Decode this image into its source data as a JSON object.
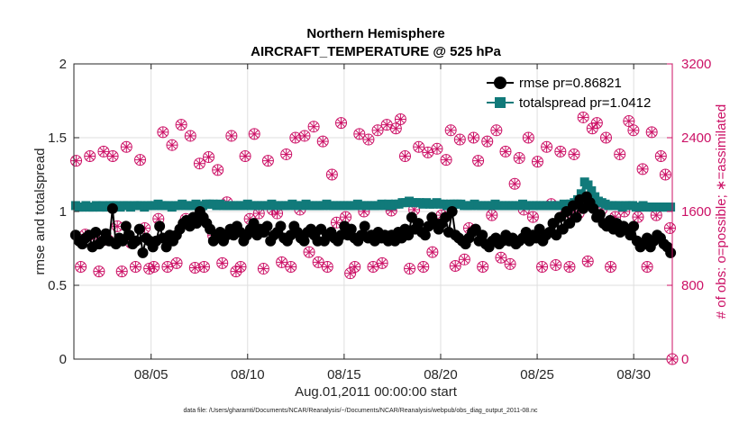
{
  "chart_data": {
    "type": "line",
    "title": "Northern Hemisphere",
    "subtitle": "AIRCRAFT_TEMPERATURE @ 525 hPa",
    "xlabel": "Aug.01,2011 00:00:00 start",
    "ylabel": "rmse and totalspread",
    "y2label": "# of obs: o=possible; ∗=assimilated",
    "footer": "data file: /Users/gharamti/Documents/NCAR/Reanalysis/~/Documents/NCAR/Reanalysis/webpub/obs_diag_output_2011-08.nc",
    "xlim": [
      1,
      32
    ],
    "ylim": [
      0,
      2
    ],
    "y2lim": [
      0,
      3200
    ],
    "xticks": [
      5,
      10,
      15,
      20,
      25,
      30
    ],
    "xticklabels": [
      "08/05",
      "08/10",
      "08/15",
      "08/20",
      "08/25",
      "08/30"
    ],
    "yticks": [
      0,
      0.5,
      1,
      1.5,
      2
    ],
    "yticklabels": [
      "0",
      "0.5",
      "1",
      "1.5",
      "2"
    ],
    "y2ticks": [
      0,
      800,
      1600,
      2400,
      3200
    ],
    "y2ticklabels": [
      "0",
      "800",
      "1600",
      "2400",
      "3200"
    ],
    "grid": true,
    "legend_location": "top-right",
    "colors": {
      "rmse": "#000000",
      "spread": "#117a7a",
      "obs": "#cc1166",
      "grid": "#dfdfdf"
    },
    "series": [
      {
        "name": "rmse pr=0.86821",
        "axis": "left",
        "marker": "circle",
        "values": [
          0.84,
          0.8,
          0.78,
          0.82,
          0.84,
          0.76,
          0.86,
          0.78,
          0.8,
          0.85,
          0.8,
          1.02,
          0.78,
          0.82,
          0.8,
          0.9,
          0.84,
          0.78,
          0.8,
          0.88,
          0.72,
          0.82,
          0.8,
          0.76,
          0.8,
          0.9,
          0.82,
          0.76,
          0.84,
          0.8,
          0.84,
          0.88,
          0.92,
          0.94,
          0.9,
          0.96,
          0.92,
          1.0,
          0.96,
          0.92,
          0.88,
          0.8,
          0.84,
          0.86,
          0.8,
          0.84,
          0.88,
          0.84,
          0.9,
          0.86,
          0.8,
          0.84,
          0.88,
          0.92,
          0.84,
          0.88,
          0.86,
          0.9,
          0.8,
          0.84,
          0.86,
          0.9,
          0.82,
          0.8,
          0.84,
          0.9,
          0.86,
          0.82,
          0.8,
          0.86,
          0.88,
          0.84,
          0.8,
          0.88,
          0.8,
          0.84,
          0.86,
          0.82,
          0.8,
          0.84,
          0.9,
          0.84,
          0.88,
          0.82,
          0.8,
          0.84,
          0.9,
          0.82,
          0.84,
          0.8,
          0.86,
          0.82,
          0.84,
          0.8,
          0.84,
          0.8,
          0.86,
          0.82,
          0.88,
          0.84,
          0.96,
          0.88,
          0.92,
          0.86,
          0.84,
          0.9,
          0.96,
          0.92,
          0.88,
          0.92,
          0.96,
          0.86,
          1.0,
          0.84,
          0.82,
          0.8,
          0.78,
          0.82,
          0.86,
          0.88,
          0.8,
          0.84,
          0.78,
          0.76,
          0.8,
          0.82,
          0.78,
          0.8,
          0.84,
          0.8,
          0.82,
          0.78,
          0.8,
          0.82,
          0.86,
          0.8,
          0.84,
          0.82,
          0.88,
          0.8,
          0.84,
          0.86,
          0.92,
          0.84,
          0.96,
          0.88,
          1.0,
          0.92,
          1.04,
          0.96,
          1.08,
          1.02,
          1.1,
          1.06,
          1.02,
          0.96,
          0.98,
          0.92,
          0.9,
          0.94,
          0.88,
          0.92,
          0.86,
          0.9,
          0.88,
          0.84,
          0.9,
          0.8,
          0.76,
          0.78,
          0.82,
          0.76,
          0.8,
          0.84,
          0.82,
          0.78,
          0.76,
          0.72
        ]
      },
      {
        "name": "totalspread pr=1.0412",
        "axis": "left",
        "marker": "square",
        "values": [
          1.04,
          1.03,
          1.03,
          1.04,
          1.03,
          1.03,
          1.04,
          1.03,
          1.04,
          1.03,
          1.04,
          1.04,
          1.04,
          1.03,
          1.04,
          1.04,
          1.03,
          1.04,
          1.04,
          1.04,
          1.03,
          1.04,
          1.04,
          1.04,
          1.05,
          1.04,
          1.04,
          1.04,
          1.03,
          1.04,
          1.04,
          1.05,
          1.04,
          1.04,
          1.04,
          1.05,
          1.04,
          1.04,
          1.05,
          1.05,
          1.05,
          1.04,
          1.05,
          1.04,
          1.04,
          1.04,
          1.04,
          1.04,
          1.04,
          1.04,
          1.05,
          1.04,
          1.04,
          1.04,
          1.04,
          1.04,
          1.04,
          1.05,
          1.04,
          1.04,
          1.04,
          1.04,
          1.04,
          1.05,
          1.04,
          1.04,
          1.04,
          1.05,
          1.04,
          1.04,
          1.04,
          1.04,
          1.04,
          1.05,
          1.04,
          1.04,
          1.04,
          1.04,
          1.04,
          1.04,
          1.04,
          1.04,
          1.05,
          1.04,
          1.04,
          1.04,
          1.04,
          1.04,
          1.04,
          1.05,
          1.04,
          1.05,
          1.04,
          1.05,
          1.05,
          1.06,
          1.06,
          1.07,
          1.06,
          1.06,
          1.06,
          1.05,
          1.06,
          1.05,
          1.05,
          1.06,
          1.05,
          1.05,
          1.04,
          1.05,
          1.05,
          1.05,
          1.05,
          1.04,
          1.04,
          1.04,
          1.05,
          1.04,
          1.04,
          1.04,
          1.04,
          1.04,
          1.05,
          1.04,
          1.04,
          1.04,
          1.04,
          1.04,
          1.04,
          1.04,
          1.05,
          1.04,
          1.04,
          1.04,
          1.04,
          1.04,
          1.04,
          1.04,
          1.04,
          1.04,
          1.04,
          1.04,
          1.05,
          1.04,
          1.05,
          1.06,
          1.08,
          1.12,
          1.2,
          1.18,
          1.14,
          1.1,
          1.07,
          1.06,
          1.05,
          1.04,
          1.04,
          1.04,
          1.04,
          1.03,
          1.04,
          1.04,
          1.04,
          1.03,
          1.03,
          1.04,
          1.03,
          1.03,
          1.03,
          1.03,
          1.03,
          1.03,
          1.03,
          1.03
        ]
      },
      {
        "name": "# obs possible",
        "axis": "right",
        "marker": "circle-open",
        "values": [
          2150,
          1000,
          1350,
          2200,
          1320,
          950,
          2250,
          1290,
          2200,
          1440,
          950,
          2300,
          1260,
          1000,
          2160,
          1420,
          980,
          1000,
          1520,
          2460,
          1000,
          2320,
          1040,
          2540,
          1520,
          2420,
          990,
          2120,
          1000,
          2190,
          1340,
          2050,
          1040,
          1700,
          2420,
          950,
          1000,
          2200,
          1520,
          2440,
          1580,
          980,
          2150,
          1620,
          1580,
          1050,
          2220,
          1000,
          2400,
          1620,
          2420,
          1160,
          2520,
          1050,
          2360,
          1000,
          2000,
          1480,
          2560,
          1540,
          930,
          1000,
          2440,
          1600,
          2380,
          1000,
          2480,
          1040,
          2540,
          1610,
          2500,
          2600,
          2200,
          980,
          1620,
          2300,
          1000,
          2240,
          1160,
          2280,
          1560,
          2160,
          2480,
          1010,
          2380,
          1080,
          1420,
          2400,
          2150,
          1000,
          2360,
          1560,
          2480,
          1100,
          2250,
          1030,
          1900,
          2180,
          1620,
          2400,
          1540,
          2140,
          1000,
          2300,
          1680,
          1020,
          2250,
          1560,
          1000,
          2220,
          1580,
          2620,
          1060,
          2500,
          2560,
          1620,
          2400,
          1000,
          1540,
          2220,
          1600,
          2580,
          2480,
          1540,
          2060,
          1000,
          2460,
          1560,
          2200,
          2000,
          1420
        ]
      },
      {
        "name": "# obs assimilated",
        "axis": "right",
        "marker": "asterisk",
        "values": [
          2150,
          1000,
          1350,
          2200,
          1320,
          950,
          2250,
          1290,
          2200,
          1440,
          950,
          2300,
          1260,
          1000,
          2160,
          1420,
          980,
          1000,
          1520,
          2460,
          1000,
          2320,
          1040,
          2540,
          1520,
          2420,
          990,
          2120,
          1000,
          2190,
          1340,
          2050,
          1040,
          1700,
          2420,
          950,
          1000,
          2200,
          1520,
          2440,
          1580,
          980,
          2150,
          1620,
          1580,
          1050,
          2220,
          1000,
          2400,
          1620,
          2420,
          1160,
          2520,
          1050,
          2360,
          1000,
          2000,
          1480,
          2560,
          1540,
          930,
          1000,
          2440,
          1600,
          2380,
          1000,
          2480,
          1040,
          2540,
          1610,
          2500,
          2600,
          2200,
          980,
          1620,
          2300,
          1000,
          2240,
          1160,
          2280,
          1560,
          2160,
          2480,
          1010,
          2380,
          1080,
          1420,
          2400,
          2150,
          1000,
          2360,
          1560,
          2480,
          1100,
          2250,
          1030,
          1900,
          2180,
          1620,
          2400,
          1540,
          2140,
          1000,
          2300,
          1680,
          1020,
          2250,
          1560,
          1000,
          2220,
          1580,
          2620,
          1060,
          2500,
          2560,
          1620,
          2400,
          1000,
          1540,
          2220,
          1600,
          2580,
          2480,
          1540,
          2060,
          1000,
          2460,
          1560,
          2200,
          2000,
          1420
        ]
      }
    ]
  }
}
